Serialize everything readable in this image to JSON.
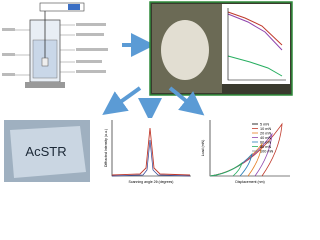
{
  "crystal_photo": {
    "label": "AcSTR"
  },
  "xrd_chart": {
    "y_label": "Diffracted Intensity (a.u.)",
    "x_label": "Scanning angle 2θ (degrees)"
  },
  "load_chart": {
    "y_label": "Load (mN)",
    "x_label": "Displacement (nm)",
    "legend": [
      "5 mN",
      "10 mN",
      "20 mN",
      "40 mN",
      "60 mN",
      "80 mN",
      "100 mN"
    ]
  }
}
